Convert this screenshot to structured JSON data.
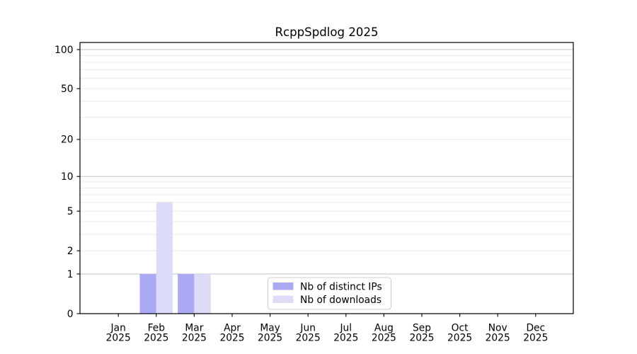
{
  "title": "RcppSpdlog 2025",
  "chart_data": {
    "type": "bar",
    "title": "RcppSpdlog 2025",
    "x_categories": [
      "Jan",
      "Feb",
      "Mar",
      "Apr",
      "May",
      "Jun",
      "Jul",
      "Aug",
      "Sep",
      "Oct",
      "Nov",
      "Dec"
    ],
    "x_year_label": "2025",
    "series": [
      {
        "name": "Nb of distinct IPs",
        "color": "#aaaaf4",
        "values": [
          0,
          1,
          1,
          0,
          0,
          0,
          0,
          0,
          0,
          0,
          0,
          0
        ]
      },
      {
        "name": "Nb of downloads",
        "color": "#dcdcf8",
        "values": [
          0,
          6,
          1,
          0,
          0,
          0,
          0,
          0,
          0,
          0,
          0,
          0
        ]
      }
    ],
    "y_ticks": [
      0,
      1,
      2,
      5,
      10,
      20,
      50,
      100
    ],
    "y_major_gridlines": [
      1,
      10,
      100
    ],
    "y_minor_gridlines": [
      2,
      3,
      4,
      5,
      6,
      7,
      8,
      9,
      20,
      30,
      40,
      50,
      60,
      70,
      80,
      90
    ],
    "y_scale": "log1p",
    "ylim": [
      0,
      113
    ],
    "grid": "horizontal",
    "legend_position": "bottom-center"
  },
  "colors": {
    "background": "#ffffff",
    "spine": "#000000",
    "grid_major": "#c2c2c2",
    "grid_minor": "#e8e8e8",
    "distinct_ips": "#aaaaf4",
    "downloads": "#dcdcf8",
    "legend_border": "#cccccc",
    "text": "#000000"
  }
}
